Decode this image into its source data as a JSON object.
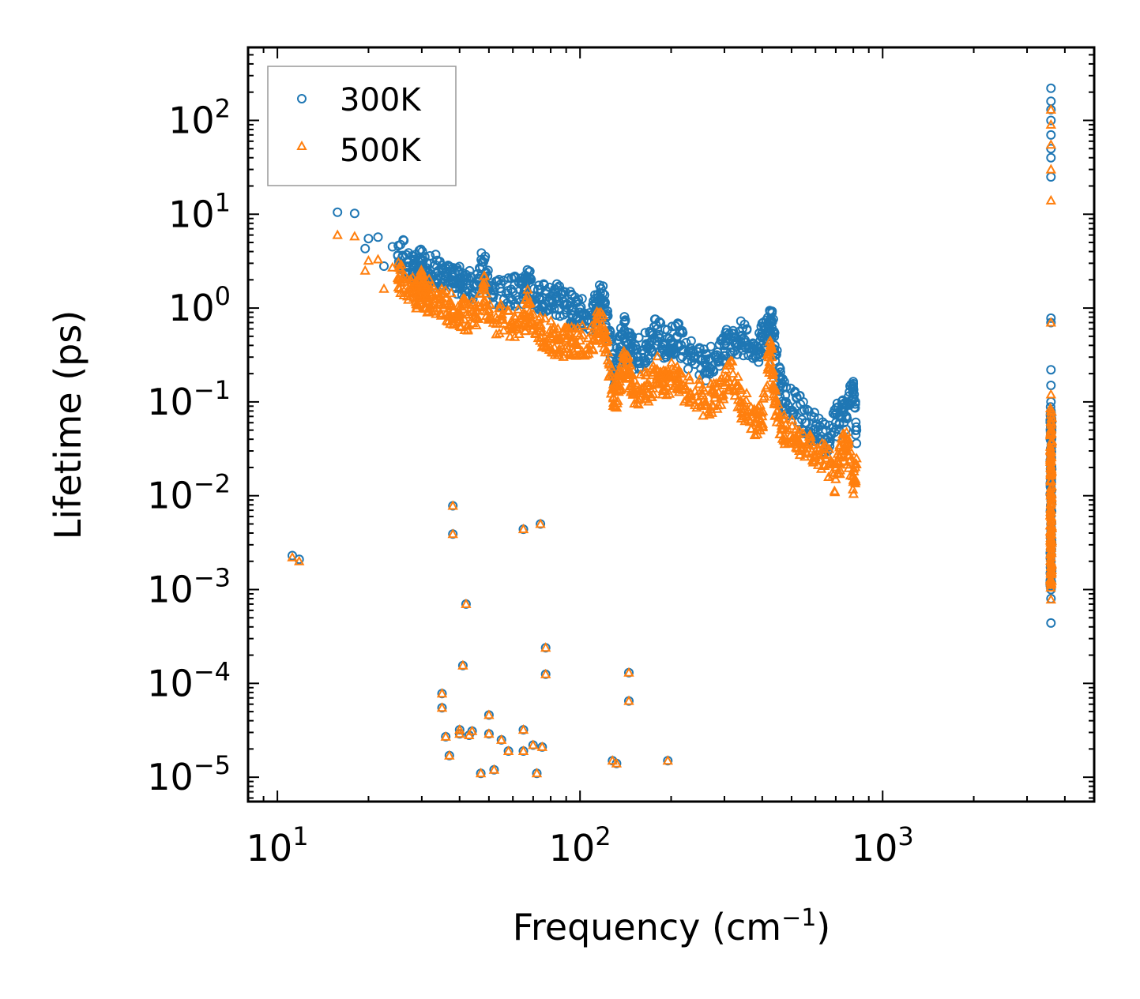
{
  "chart_data": {
    "type": "scatter",
    "title": "",
    "xlabel": {
      "base": "Frequency (cm",
      "sup": "−1",
      "end": ")"
    },
    "ylabel": "Lifetime (ps)",
    "xscale": "log",
    "yscale": "log",
    "xlim": [
      8,
      5000
    ],
    "ylim": [
      5.5e-06,
      600
    ],
    "xticks": [
      {
        "value": 10,
        "base": "10",
        "exp": "1"
      },
      {
        "value": 100,
        "base": "10",
        "exp": "2"
      },
      {
        "value": 1000,
        "base": "10",
        "exp": "3"
      }
    ],
    "yticks": [
      {
        "value": 1e-05,
        "base": "10",
        "exp": "−5"
      },
      {
        "value": 0.0001,
        "base": "10",
        "exp": "−4"
      },
      {
        "value": 0.001,
        "base": "10",
        "exp": "−3"
      },
      {
        "value": 0.01,
        "base": "10",
        "exp": "−2"
      },
      {
        "value": 0.1,
        "base": "10",
        "exp": "−1"
      },
      {
        "value": 1,
        "base": "10",
        "exp": "0"
      },
      {
        "value": 10,
        "base": "10",
        "exp": "1"
      },
      {
        "value": 100,
        "base": "10",
        "exp": "2"
      }
    ],
    "legend_position": "top-left",
    "series": [
      {
        "name": "300K",
        "marker": "circle",
        "color": "#1f77b4",
        "points": [
          [
            11.2,
            0.0023
          ],
          [
            11.8,
            0.0021
          ],
          [
            15.8,
            10.5
          ],
          [
            18,
            10.2
          ],
          [
            19.5,
            4.3
          ],
          [
            20,
            5.5
          ],
          [
            21.5,
            5.7
          ],
          [
            22.5,
            2.8
          ],
          [
            24,
            4.5
          ],
          [
            25,
            3.6
          ],
          [
            26,
            3.6
          ],
          [
            28,
            2.8
          ],
          [
            29,
            2.6
          ],
          [
            30,
            3.3
          ],
          [
            31,
            2.2
          ],
          [
            32,
            2.5
          ],
          [
            34,
            2.5
          ],
          [
            36,
            2.2
          ],
          [
            38,
            1.9
          ],
          [
            40,
            1.9
          ],
          [
            42,
            1.8
          ],
          [
            45,
            1.7
          ],
          [
            48,
            3.1
          ],
          [
            50,
            1.6
          ],
          [
            55,
            1.5
          ],
          [
            60,
            1.5
          ],
          [
            65,
            1.4
          ],
          [
            67,
            2.0
          ],
          [
            70,
            1.35
          ],
          [
            75,
            1.3
          ],
          [
            80,
            1.25
          ],
          [
            85,
            1.2
          ],
          [
            90,
            1.1
          ],
          [
            95,
            0.95
          ],
          [
            100,
            0.9
          ],
          [
            110,
            0.85
          ],
          [
            115,
            1.3
          ],
          [
            120,
            1.2
          ],
          [
            125,
            0.45
          ],
          [
            130,
            0.2
          ],
          [
            135,
            0.35
          ],
          [
            140,
            0.7
          ],
          [
            145,
            0.5
          ],
          [
            150,
            0.3
          ],
          [
            160,
            0.35
          ],
          [
            170,
            0.4
          ],
          [
            180,
            0.6
          ],
          [
            190,
            0.4
          ],
          [
            200,
            0.45
          ],
          [
            210,
            0.5
          ],
          [
            220,
            0.35
          ],
          [
            240,
            0.3
          ],
          [
            260,
            0.25
          ],
          [
            280,
            0.3
          ],
          [
            300,
            0.4
          ],
          [
            320,
            0.45
          ],
          [
            340,
            0.5
          ],
          [
            360,
            0.4
          ],
          [
            380,
            0.3
          ],
          [
            400,
            0.5
          ],
          [
            420,
            0.6
          ],
          [
            430,
            0.7
          ],
          [
            440,
            0.4
          ],
          [
            460,
            0.15
          ],
          [
            480,
            0.1
          ],
          [
            520,
            0.09
          ],
          [
            560,
            0.06
          ],
          [
            600,
            0.055
          ],
          [
            650,
            0.04
          ],
          [
            700,
            0.06
          ],
          [
            730,
            0.08
          ],
          [
            760,
            0.07
          ],
          [
            800,
            0.14
          ],
          [
            820,
            0.05
          ],
          [
            35,
            7.8e-05
          ],
          [
            35,
            5.5e-05
          ],
          [
            36,
            2.7e-05
          ],
          [
            37,
            1.7e-05
          ],
          [
            38,
            0.0078
          ],
          [
            38,
            0.0039
          ],
          [
            40,
            3.2e-05
          ],
          [
            40,
            2.9e-05
          ],
          [
            41,
            0.000155
          ],
          [
            42,
            0.0007
          ],
          [
            43,
            2.8e-05
          ],
          [
            44,
            3.1e-05
          ],
          [
            47,
            1.1e-05
          ],
          [
            50,
            4.6e-05
          ],
          [
            50,
            2.9e-05
          ],
          [
            52,
            1.2e-05
          ],
          [
            55,
            2.5e-05
          ],
          [
            58,
            1.9e-05
          ],
          [
            65,
            0.0044
          ],
          [
            65,
            3.2e-05
          ],
          [
            65,
            1.9e-05
          ],
          [
            70,
            2.2e-05
          ],
          [
            72,
            1.1e-05
          ],
          [
            74,
            0.005
          ],
          [
            75,
            2.1e-05
          ],
          [
            77,
            0.00024
          ],
          [
            77,
            0.000125
          ],
          [
            128,
            1.5e-05
          ],
          [
            132,
            1.4e-05
          ],
          [
            145,
            0.00013
          ],
          [
            145,
            6.5e-05
          ],
          [
            195,
            1.5e-05
          ],
          [
            3600,
            220
          ],
          [
            3600,
            160
          ],
          [
            3600,
            130
          ],
          [
            3600,
            100
          ],
          [
            3600,
            70
          ],
          [
            3600,
            50
          ],
          [
            3600,
            40
          ],
          [
            3600,
            25
          ],
          [
            3600,
            0.78
          ],
          [
            3600,
            0.7
          ],
          [
            3600,
            0.22
          ],
          [
            3600,
            0.15
          ],
          [
            3600,
            0.1
          ],
          [
            3600,
            0.08
          ],
          [
            3600,
            0.05
          ],
          [
            3600,
            0.03
          ],
          [
            3600,
            0.02
          ],
          [
            3600,
            0.012
          ],
          [
            3600,
            0.008
          ],
          [
            3600,
            0.005
          ],
          [
            3600,
            0.003
          ],
          [
            3600,
            0.002
          ],
          [
            3600,
            0.0015
          ],
          [
            3600,
            0.001
          ],
          [
            3600,
            0.0008
          ],
          [
            3600,
            0.00044
          ]
        ]
      },
      {
        "name": "500K",
        "marker": "triangle",
        "color": "#ff7f0e",
        "points": [
          [
            11.2,
            0.0022
          ],
          [
            11.8,
            0.002
          ],
          [
            15.8,
            6.0
          ],
          [
            18,
            5.8
          ],
          [
            19.5,
            2.5
          ],
          [
            20,
            3.2
          ],
          [
            21.5,
            3.3
          ],
          [
            22.5,
            1.6
          ],
          [
            24,
            2.7
          ],
          [
            25,
            2.1
          ],
          [
            26,
            2.0
          ],
          [
            28,
            1.5
          ],
          [
            29,
            1.4
          ],
          [
            30,
            1.8
          ],
          [
            31,
            1.3
          ],
          [
            32,
            1.4
          ],
          [
            34,
            1.1
          ],
          [
            36,
            1.1
          ],
          [
            38,
            0.95
          ],
          [
            40,
            0.9
          ],
          [
            42,
            0.85
          ],
          [
            45,
            0.8
          ],
          [
            48,
            1.7
          ],
          [
            50,
            0.8
          ],
          [
            55,
            0.75
          ],
          [
            60,
            0.7
          ],
          [
            65,
            0.65
          ],
          [
            67,
            1.1
          ],
          [
            70,
            0.6
          ],
          [
            75,
            0.55
          ],
          [
            80,
            0.5
          ],
          [
            85,
            0.45
          ],
          [
            90,
            0.45
          ],
          [
            95,
            0.45
          ],
          [
            100,
            0.45
          ],
          [
            110,
            0.45
          ],
          [
            115,
            0.7
          ],
          [
            120,
            0.55
          ],
          [
            125,
            0.25
          ],
          [
            130,
            0.09
          ],
          [
            135,
            0.15
          ],
          [
            140,
            0.3
          ],
          [
            145,
            0.2
          ],
          [
            150,
            0.13
          ],
          [
            160,
            0.14
          ],
          [
            170,
            0.15
          ],
          [
            180,
            0.22
          ],
          [
            190,
            0.16
          ],
          [
            200,
            0.18
          ],
          [
            210,
            0.2
          ],
          [
            220,
            0.15
          ],
          [
            240,
            0.13
          ],
          [
            260,
            0.1
          ],
          [
            280,
            0.12
          ],
          [
            300,
            0.15
          ],
          [
            320,
            0.2
          ],
          [
            340,
            0.1
          ],
          [
            360,
            0.08
          ],
          [
            380,
            0.06
          ],
          [
            400,
            0.07
          ],
          [
            420,
            0.3
          ],
          [
            430,
            0.3
          ],
          [
            440,
            0.1
          ],
          [
            460,
            0.06
          ],
          [
            480,
            0.05
          ],
          [
            520,
            0.04
          ],
          [
            560,
            0.035
          ],
          [
            600,
            0.03
          ],
          [
            650,
            0.025
          ],
          [
            700,
            0.015
          ],
          [
            730,
            0.03
          ],
          [
            760,
            0.035
          ],
          [
            800,
            0.014
          ],
          [
            820,
            0.025
          ],
          [
            35,
            7.8e-05
          ],
          [
            35,
            5.5e-05
          ],
          [
            36,
            2.7e-05
          ],
          [
            37,
            1.7e-05
          ],
          [
            38,
            0.0078
          ],
          [
            38,
            0.0039
          ],
          [
            40,
            3.2e-05
          ],
          [
            40,
            2.9e-05
          ],
          [
            41,
            0.000155
          ],
          [
            42,
            0.0007
          ],
          [
            43,
            2.8e-05
          ],
          [
            44,
            3.1e-05
          ],
          [
            47,
            1.1e-05
          ],
          [
            50,
            4.6e-05
          ],
          [
            50,
            2.9e-05
          ],
          [
            52,
            1.2e-05
          ],
          [
            55,
            2.5e-05
          ],
          [
            58,
            1.9e-05
          ],
          [
            65,
            0.0044
          ],
          [
            65,
            3.2e-05
          ],
          [
            65,
            1.9e-05
          ],
          [
            70,
            2.2e-05
          ],
          [
            72,
            1.1e-05
          ],
          [
            74,
            0.005
          ],
          [
            75,
            2.1e-05
          ],
          [
            77,
            0.00024
          ],
          [
            77,
            0.000125
          ],
          [
            128,
            1.5e-05
          ],
          [
            132,
            1.4e-05
          ],
          [
            145,
            0.00013
          ],
          [
            145,
            6.5e-05
          ],
          [
            195,
            1.5e-05
          ],
          [
            3600,
            130
          ],
          [
            3600,
            90
          ],
          [
            3600,
            55
          ],
          [
            3600,
            30
          ],
          [
            3600,
            14
          ],
          [
            3600,
            0.7
          ],
          [
            3600,
            0.12
          ],
          [
            3600,
            0.08
          ],
          [
            3600,
            0.05
          ],
          [
            3600,
            0.03
          ],
          [
            3600,
            0.02
          ],
          [
            3600,
            0.012
          ],
          [
            3600,
            0.008
          ],
          [
            3600,
            0.005
          ],
          [
            3600,
            0.003
          ],
          [
            3600,
            0.002
          ],
          [
            3600,
            0.0012
          ],
          [
            3600,
            0.00078
          ]
        ]
      }
    ]
  },
  "noise_seed": 42,
  "legend": [
    {
      "label": "300K",
      "marker": "circle",
      "color": "#1f77b4"
    },
    {
      "label": "500K",
      "marker": "triangle",
      "color": "#ff7f0e"
    }
  ]
}
